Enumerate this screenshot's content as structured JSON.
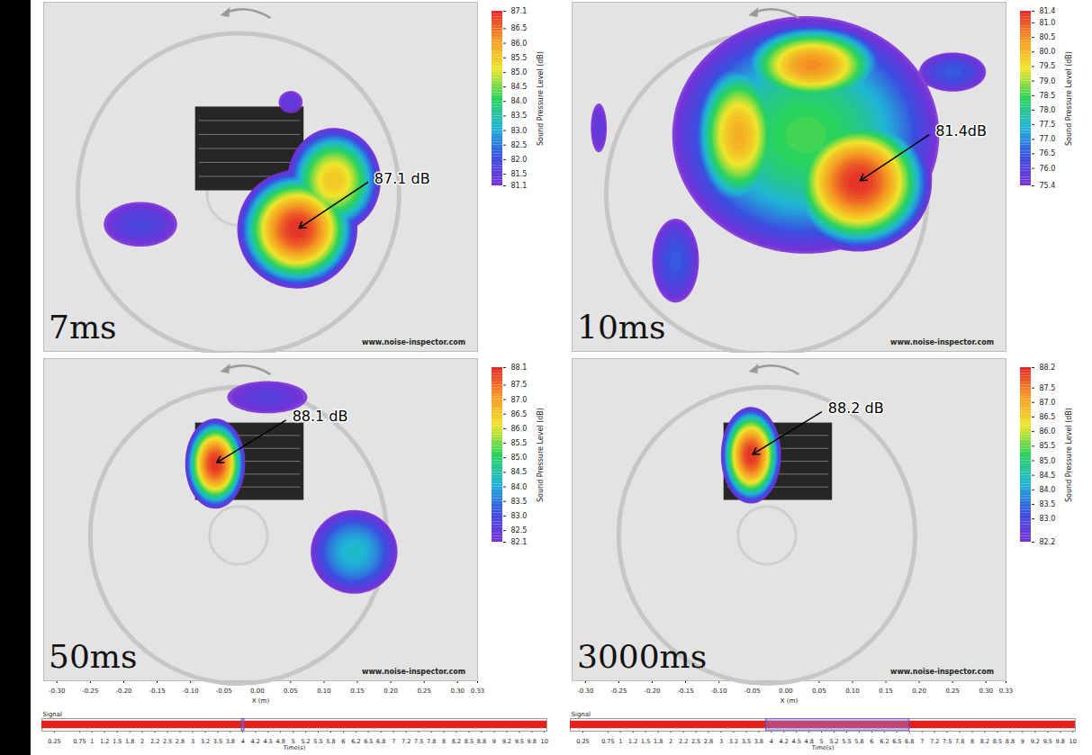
{
  "chart_data": [
    {
      "type": "heatmap",
      "title": "7ms",
      "annotation": "87.1 dB",
      "watermark": "www.noise-inspector.com",
      "xlim": [
        -0.32,
        0.33
      ],
      "ylim": [
        -0.25,
        0.25
      ],
      "tick_labels": false,
      "colorscale": [
        "#7a2fd6",
        "#3a4fe0",
        "#1fb5d6",
        "#2ad35a",
        "#f0e52a",
        "#f59a23",
        "#e3262a"
      ],
      "colorbar": {
        "title": "Sound Pressure Level (dB)",
        "range": [
          81.1,
          87.1
        ],
        "ticks": [
          87.1,
          86.5,
          {
            "value": 86,
            "label": "86.0"
          },
          85.5,
          {
            "value": 85,
            "label": "85.0"
          },
          84.5,
          {
            "value": 84,
            "label": "84.0"
          },
          83.5,
          {
            "value": 83,
            "label": "83.0"
          },
          82.5,
          {
            "value": 82,
            "label": "82.0"
          },
          81.5,
          81.1
        ]
      },
      "sources": [
        {
          "x": 0.06,
          "y": -0.075,
          "rx": 0.09,
          "ry": 0.085,
          "level": 87.1
        },
        {
          "x": 0.115,
          "y": -0.005,
          "rx": 0.07,
          "ry": 0.075,
          "level": 85.6
        },
        {
          "x": -0.175,
          "y": -0.068,
          "rx": 0.055,
          "ry": 0.032,
          "level": 81.9
        },
        {
          "x": 0.05,
          "y": 0.107,
          "rx": 0.018,
          "ry": 0.016,
          "level": 81.6
        }
      ]
    },
    {
      "type": "heatmap",
      "title": "10ms",
      "annotation": "81.4dB",
      "watermark": "www.noise-inspector.com",
      "xlim": [
        -0.32,
        0.33
      ],
      "ylim": [
        -0.25,
        0.25
      ],
      "tick_labels": false,
      "colorscale": [
        "#7a2fd6",
        "#3a4fe0",
        "#1fb5d6",
        "#2ad35a",
        "#f0e52a",
        "#f59a23",
        "#e3262a"
      ],
      "colorbar": {
        "title": "Sound Pressure Level (dB)",
        "range": [
          75.4,
          81.4
        ],
        "ticks": [
          81.4,
          {
            "value": 81,
            "label": "81.0"
          },
          80.5,
          {
            "value": 80,
            "label": "80.0"
          },
          79.5,
          {
            "value": 79,
            "label": "79.0"
          },
          78.5,
          {
            "value": 78,
            "label": "78.0"
          },
          77.5,
          {
            "value": 77,
            "label": "77.0"
          },
          76.5,
          {
            "value": 76,
            "label": "76.0"
          },
          75.4
        ]
      },
      "sources": [
        {
          "x": 0.109,
          "y": -0.007,
          "rx": 0.11,
          "ry": 0.1,
          "level": 81.4
        },
        {
          "x": 0.04,
          "y": 0.16,
          "rx": 0.11,
          "ry": 0.06,
          "level": 80.6
        },
        {
          "x": -0.07,
          "y": 0.06,
          "rx": 0.07,
          "ry": 0.11,
          "level": 80.2
        },
        {
          "x": 0.03,
          "y": 0.06,
          "rx": 0.2,
          "ry": 0.17,
          "level": 78.6
        },
        {
          "x": 0.25,
          "y": 0.15,
          "rx": 0.05,
          "ry": 0.028,
          "level": 76.6
        },
        {
          "x": -0.165,
          "y": -0.12,
          "rx": 0.035,
          "ry": 0.06,
          "level": 76.6
        },
        {
          "x": -0.28,
          "y": 0.07,
          "rx": 0.012,
          "ry": 0.035,
          "level": 75.9
        }
      ]
    },
    {
      "type": "heatmap",
      "title": "50ms",
      "annotation": "88.1 dB",
      "watermark": "www.noise-inspector.com",
      "xlim": [
        -0.32,
        0.33
      ],
      "ylim": [
        -0.25,
        0.25
      ],
      "tick_labels": "x",
      "xlabel": "X (m)",
      "xticks": [
        {
          "value": -0.3,
          "label": "-0.30"
        },
        -0.25,
        {
          "value": -0.2,
          "label": "-0.20"
        },
        -0.15,
        {
          "value": -0.1,
          "label": "-0.10"
        },
        -0.05,
        {
          "value": 0,
          "label": "0.00"
        },
        0.05,
        {
          "value": 0.1,
          "label": "0.10"
        },
        0.15,
        {
          "value": 0.2,
          "label": "0.20"
        },
        0.25,
        {
          "value": 0.3,
          "label": "0.30"
        },
        0.33
      ],
      "colorscale": [
        "#7a2fd6",
        "#3a4fe0",
        "#1fb5d6",
        "#2ad35a",
        "#f0e52a",
        "#f59a23",
        "#e3262a"
      ],
      "colorbar": {
        "title": "Sound Pressure Level (dB)",
        "range": [
          82.1,
          88.1
        ],
        "ticks": [
          88.1,
          87.5,
          {
            "value": 87,
            "label": "87.0"
          },
          86.5,
          {
            "value": 86,
            "label": "86.0"
          },
          85.5,
          {
            "value": 85,
            "label": "85.0"
          },
          84.5,
          {
            "value": 84,
            "label": "84.0"
          },
          83.5,
          {
            "value": 83,
            "label": "83.0"
          },
          82.5,
          82.1
        ]
      },
      "sources": [
        {
          "x": -0.063,
          "y": 0.087,
          "rx": 0.045,
          "ry": 0.07,
          "level": 88.1
        },
        {
          "x": 0.015,
          "y": 0.19,
          "rx": 0.06,
          "ry": 0.025,
          "level": 82.7
        },
        {
          "x": 0.145,
          "y": -0.05,
          "rx": 0.065,
          "ry": 0.065,
          "level": 84.3
        }
      ],
      "signal": {
        "label": "Signal",
        "xlabel": "Time(s)",
        "color": "#e8201c",
        "xlim": [
          0,
          10.05
        ],
        "ylim": [
          -1,
          1
        ],
        "envelope": [
          -0.6,
          0.6
        ],
        "selection": [
          3.98,
          4.03
        ],
        "xticks": [
          0.25,
          0.75,
          1,
          {
            "value": 1.25,
            "label": "1.2"
          },
          1.5,
          {
            "value": 1.75,
            "label": "1.8"
          },
          2,
          {
            "value": 2.25,
            "label": "2.2"
          },
          2.5,
          {
            "value": 2.75,
            "label": "2.8"
          },
          3,
          {
            "value": 3.25,
            "label": "3.2"
          },
          3.5,
          {
            "value": 3.75,
            "label": "3.8"
          },
          4,
          {
            "value": 4.25,
            "label": "4.2"
          },
          4.5,
          {
            "value": 4.75,
            "label": "4.8"
          },
          5,
          {
            "value": 5.25,
            "label": "5.2"
          },
          5.5,
          {
            "value": 5.75,
            "label": "5.8"
          },
          6,
          {
            "value": 6.25,
            "label": "6.2"
          },
          6.5,
          {
            "value": 6.75,
            "label": "6.8"
          },
          7,
          {
            "value": 7.25,
            "label": "7.2"
          },
          7.5,
          {
            "value": 7.75,
            "label": "7.8"
          },
          8,
          {
            "value": 8.25,
            "label": "8.2"
          },
          8.5,
          {
            "value": 8.75,
            "label": "8.8"
          },
          9,
          {
            "value": 9.25,
            "label": "9.2"
          },
          9.5,
          {
            "value": 9.75,
            "label": "9.8"
          },
          10
        ]
      }
    },
    {
      "type": "heatmap",
      "title": "3000ms",
      "annotation": "88.2 dB",
      "watermark": "www.noise-inspector.com",
      "xlim": [
        -0.32,
        0.33
      ],
      "ylim": [
        -0.25,
        0.25
      ],
      "tick_labels": "x",
      "xlabel": "X (m)",
      "xticks": [
        {
          "value": -0.3,
          "label": "-0.30"
        },
        -0.25,
        {
          "value": -0.2,
          "label": "-0.20"
        },
        -0.15,
        {
          "value": -0.1,
          "label": "-0.10"
        },
        -0.05,
        {
          "value": 0,
          "label": "0.00"
        },
        0.05,
        {
          "value": 0.1,
          "label": "0.10"
        },
        0.15,
        {
          "value": 0.2,
          "label": "0.20"
        },
        0.25,
        {
          "value": 0.3,
          "label": "0.30"
        },
        0.33
      ],
      "colorscale": [
        "#7a2fd6",
        "#3a4fe0",
        "#1fb5d6",
        "#2ad35a",
        "#f0e52a",
        "#f59a23",
        "#e3262a"
      ],
      "colorbar": {
        "title": "Sound Pressure Level (dB)",
        "range": [
          82.2,
          88.2
        ],
        "ticks": [
          88.2,
          87.5,
          {
            "value": 87,
            "label": "87.0"
          },
          86.5,
          {
            "value": 86,
            "label": "86.0"
          },
          85.5,
          {
            "value": 85,
            "label": "85.0"
          },
          84.5,
          {
            "value": 84,
            "label": "84.0"
          },
          83.5,
          {
            "value": 83,
            "label": "83.0"
          },
          82.2
        ]
      },
      "sources": [
        {
          "x": -0.052,
          "y": 0.1,
          "rx": 0.045,
          "ry": 0.075,
          "level": 88.2
        }
      ],
      "signal": {
        "label": "Signal",
        "xlabel": "Time(s)",
        "color": "#e8201c",
        "xlim": [
          0,
          10.05
        ],
        "ylim": [
          -1,
          1
        ],
        "envelope": [
          -0.6,
          0.6
        ],
        "selection": [
          3.9,
          6.75
        ],
        "xticks": [
          0.25,
          0.75,
          1,
          {
            "value": 1.25,
            "label": "1.2"
          },
          1.5,
          {
            "value": 1.75,
            "label": "1.8"
          },
          2,
          {
            "value": 2.25,
            "label": "2.2"
          },
          2.5,
          {
            "value": 2.75,
            "label": "2.8"
          },
          3,
          {
            "value": 3.25,
            "label": "3.2"
          },
          3.5,
          {
            "value": 3.75,
            "label": "3.8"
          },
          4,
          {
            "value": 4.25,
            "label": "4.2"
          },
          4.5,
          {
            "value": 4.75,
            "label": "4.8"
          },
          5,
          {
            "value": 5.25,
            "label": "5.2"
          },
          5.5,
          {
            "value": 5.75,
            "label": "5.8"
          },
          6,
          {
            "value": 6.25,
            "label": "6.2"
          },
          6.5,
          {
            "value": 6.75,
            "label": "6.8"
          },
          7,
          {
            "value": 7.25,
            "label": "7.2"
          },
          7.5,
          {
            "value": 7.75,
            "label": "7.8"
          },
          8,
          {
            "value": 8.25,
            "label": "8.2"
          },
          8.5,
          {
            "value": 8.75,
            "label": "8.8"
          },
          9,
          {
            "value": 9.25,
            "label": "9.2"
          },
          9.5,
          {
            "value": 9.75,
            "label": "9.8"
          },
          10
        ]
      }
    }
  ]
}
